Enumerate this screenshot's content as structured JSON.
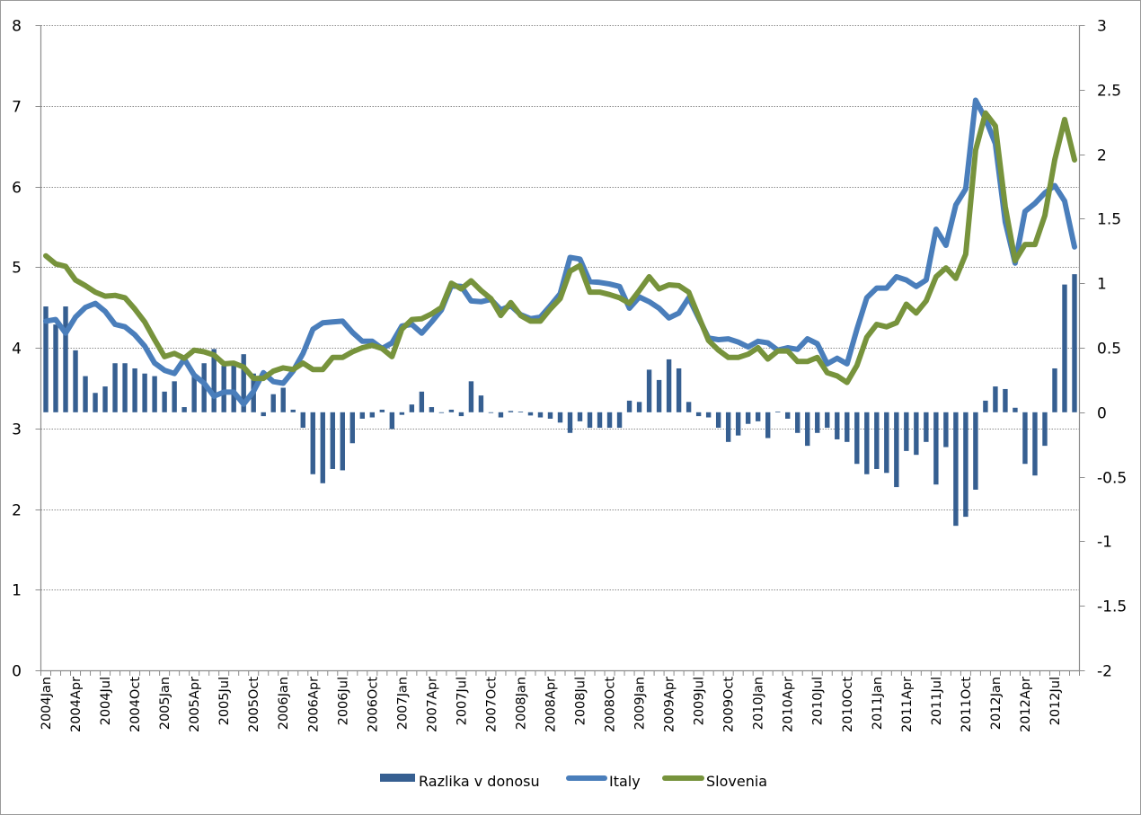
{
  "chart_data": {
    "type": "bar+line",
    "title": "",
    "xlabel": "",
    "ylabel": "",
    "y_left": {
      "min": 0,
      "max": 8,
      "ticks": [
        "0",
        "1",
        "2",
        "3",
        "4",
        "5",
        "6",
        "7",
        "8"
      ]
    },
    "y_right": {
      "min": -2,
      "max": 3,
      "ticks": [
        "-2",
        "-1.5",
        "-1",
        "-0.5",
        "0",
        "0.5",
        "1",
        "1.5",
        "2",
        "2.5",
        "3"
      ]
    },
    "grid": true,
    "legend_position": "bottom",
    "x_tick_labels": [
      "2004Jan",
      "2004Apr",
      "2004Jul",
      "2004Oct",
      "2005Jan",
      "2005Apr",
      "2005Jul",
      "2005Oct",
      "2006Jan",
      "2006Apr",
      "2006Jul",
      "2006Oct",
      "2007Jan",
      "2007Apr",
      "2007Jul",
      "2007Oct",
      "2008Jan",
      "2008Apr",
      "2008Jul",
      "2008Oct",
      "2009Jan",
      "2009Apr",
      "2009Jul",
      "2009Oct",
      "2010Jan",
      "2010Apr",
      "2010Jul",
      "2010Oct",
      "2011Jan",
      "2011Apr",
      "2011Jul",
      "2011Oct",
      "2012Jan",
      "2012Apr",
      "2012Jul"
    ],
    "months_count": 105,
    "series": [
      {
        "name": "Razlika v donosu",
        "type": "bar",
        "axis": "right",
        "color": "#365F91",
        "values": [
          0.82,
          0.68,
          0.82,
          0.48,
          0.28,
          0.15,
          0.2,
          0.38,
          0.38,
          0.34,
          0.3,
          0.28,
          0.16,
          0.24,
          0.04,
          0.3,
          0.38,
          0.49,
          0.36,
          0.37,
          0.45,
          0.3,
          -0.03,
          0.14,
          0.19,
          0.02,
          -0.12,
          -0.48,
          -0.55,
          -0.44,
          -0.45,
          -0.24,
          -0.05,
          -0.04,
          0.02,
          -0.13,
          -0.02,
          0.06,
          0.16,
          0.04,
          0,
          0.02,
          -0.03,
          0.24,
          0.13,
          0,
          -0.04,
          0.01,
          0.005,
          -0.025,
          -0.04,
          -0.05,
          -0.08,
          -0.16,
          -0.07,
          -0.12,
          -0.12,
          -0.12,
          -0.12,
          0.09,
          0.08,
          0.33,
          0.25,
          0.41,
          0.34,
          0.08,
          -0.03,
          -0.04,
          -0.12,
          -0.23,
          -0.18,
          -0.09,
          -0.07,
          -0.2,
          0.005,
          -0.05,
          -0.16,
          -0.26,
          -0.16,
          -0.12,
          -0.21,
          -0.23,
          -0.4,
          -0.48,
          -0.44,
          -0.47,
          -0.58,
          -0.3,
          -0.33,
          -0.23,
          -0.56,
          -0.27,
          -0.88,
          -0.81,
          -0.6,
          0.09,
          0.2,
          0.18,
          0.035,
          -0.4,
          -0.49,
          -0.26,
          0.34,
          0.99,
          1.07
        ]
      },
      {
        "name": "Italy",
        "type": "line",
        "axis": "left",
        "color": "#4A7EBB",
        "values": [
          4.33,
          4.35,
          4.18,
          4.38,
          4.5,
          4.55,
          4.45,
          4.29,
          4.26,
          4.16,
          4.02,
          3.81,
          3.72,
          3.68,
          3.86,
          3.66,
          3.56,
          3.4,
          3.45,
          3.45,
          3.3,
          3.46,
          3.69,
          3.58,
          3.56,
          3.71,
          3.93,
          4.23,
          4.31,
          4.32,
          4.33,
          4.19,
          4.08,
          4.08,
          3.99,
          4.06,
          4.27,
          4.29,
          4.18,
          4.32,
          4.47,
          4.77,
          4.76,
          4.58,
          4.57,
          4.6,
          4.47,
          4.52,
          4.41,
          4.36,
          4.38,
          4.52,
          4.67,
          5.12,
          5.1,
          4.82,
          4.81,
          4.79,
          4.76,
          4.49,
          4.63,
          4.57,
          4.49,
          4.37,
          4.43,
          4.62,
          4.37,
          4.12,
          4.1,
          4.11,
          4.07,
          4.01,
          4.08,
          4.06,
          3.97,
          4.0,
          3.98,
          4.11,
          4.05,
          3.8,
          3.87,
          3.8,
          4.23,
          4.62,
          4.74,
          4.74,
          4.88,
          4.84,
          4.76,
          4.84,
          5.47,
          5.27,
          5.77,
          5.97,
          7.07,
          6.84,
          6.53,
          5.56,
          5.05,
          5.69,
          5.79,
          5.92,
          6.01,
          5.82,
          5.25
        ]
      },
      {
        "name": "Slovenia",
        "type": "line",
        "axis": "left",
        "color": "#77933C",
        "values": [
          5.14,
          5.04,
          5.01,
          4.84,
          4.77,
          4.69,
          4.64,
          4.65,
          4.62,
          4.48,
          4.32,
          4.1,
          3.89,
          3.93,
          3.87,
          3.97,
          3.95,
          3.91,
          3.8,
          3.81,
          3.76,
          3.62,
          3.62,
          3.71,
          3.75,
          3.73,
          3.81,
          3.73,
          3.73,
          3.88,
          3.88,
          3.95,
          4.0,
          4.03,
          3.99,
          3.89,
          4.23,
          4.35,
          4.36,
          4.42,
          4.5,
          4.8,
          4.73,
          4.83,
          4.71,
          4.61,
          4.4,
          4.56,
          4.4,
          4.33,
          4.33,
          4.48,
          4.61,
          4.95,
          5.02,
          4.69,
          4.69,
          4.66,
          4.62,
          4.55,
          4.71,
          4.88,
          4.73,
          4.78,
          4.77,
          4.69,
          4.39,
          4.09,
          3.97,
          3.88,
          3.88,
          3.92,
          4.0,
          3.86,
          3.96,
          3.96,
          3.83,
          3.83,
          3.88,
          3.69,
          3.65,
          3.57,
          3.78,
          4.13,
          4.29,
          4.26,
          4.31,
          4.54,
          4.43,
          4.58,
          4.88,
          4.99,
          4.86,
          5.16,
          6.45,
          6.91,
          6.75,
          5.75,
          5.08,
          5.28,
          5.28,
          5.64,
          6.33,
          6.83,
          6.33
        ]
      }
    ]
  },
  "colors": {
    "axis": "#8c8c8c",
    "grid": "#8c8c8c"
  }
}
